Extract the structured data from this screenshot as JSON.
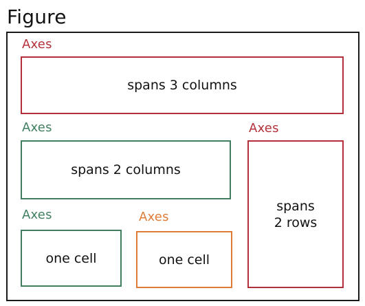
{
  "figure": {
    "title": "Figure"
  },
  "colors": {
    "frame": "#1a1a1a",
    "red": "#b3303a",
    "green": "#3f7f5f",
    "orange": "#e07b36"
  },
  "axes": [
    {
      "label": "Axes",
      "text": "spans 3 columns",
      "color": "red"
    },
    {
      "label": "Axes",
      "text": "spans 2 columns",
      "color": "green"
    },
    {
      "label": "Axes",
      "text": "spans\n2 rows",
      "color": "red"
    },
    {
      "label": "Axes",
      "text": "one cell",
      "color": "green"
    },
    {
      "label": "Axes",
      "text": "one cell",
      "color": "orange"
    }
  ]
}
